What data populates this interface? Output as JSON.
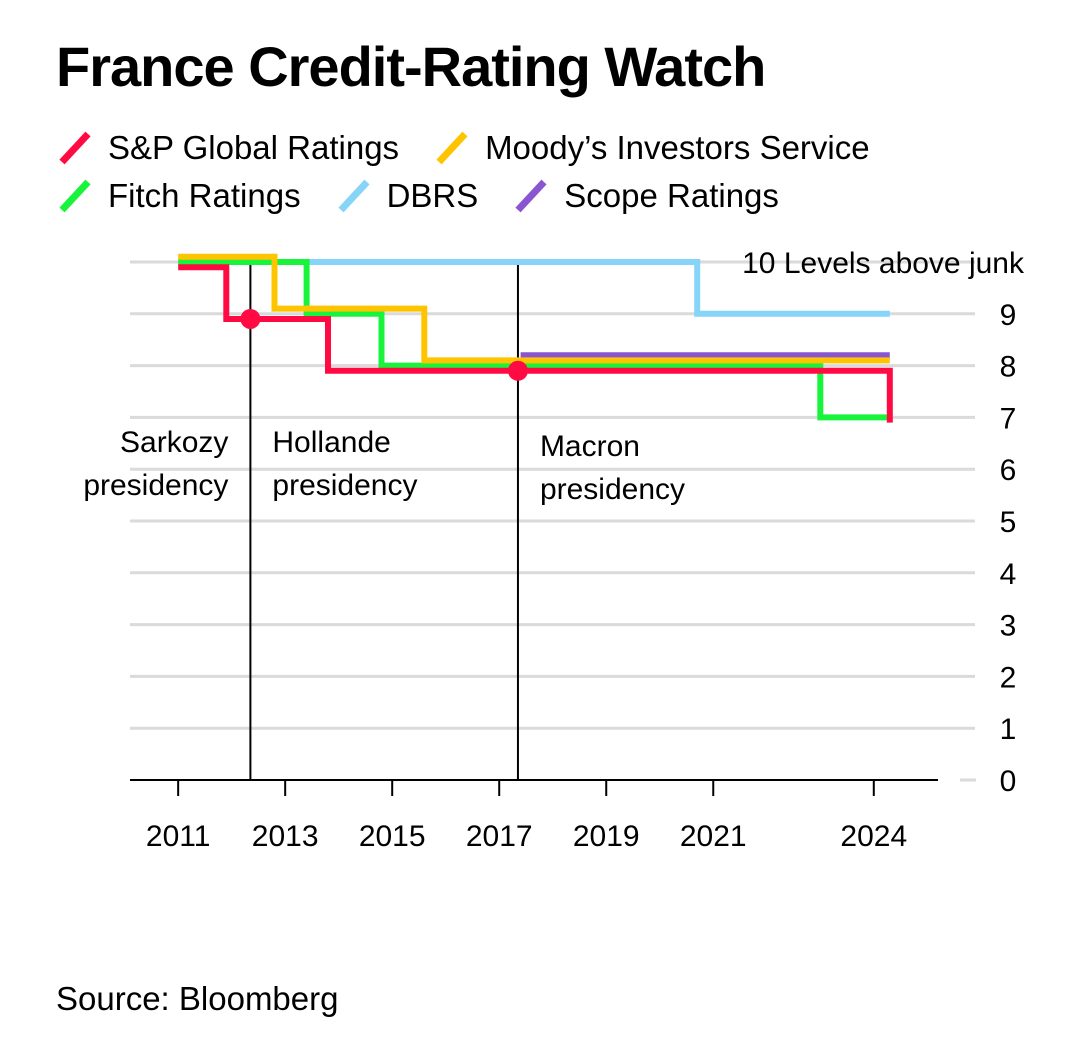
{
  "title": "France Credit-Rating Watch",
  "source": "Source: Bloomberg",
  "chart_data": {
    "type": "line",
    "title": "France Credit-Rating Watch",
    "xlabel": "",
    "ylabel": "Levels above junk",
    "xlim": [
      2010.1,
      2025.2
    ],
    "ylim": [
      0,
      10
    ],
    "x_ticks": [
      2011,
      2013,
      2015,
      2017,
      2019,
      2021,
      2024
    ],
    "y_ticks": [
      0,
      1,
      2,
      3,
      4,
      5,
      6,
      7,
      8,
      9,
      10
    ],
    "top_tick_label": "10 Levels above junk",
    "grid": true,
    "series": [
      {
        "name": "DBRS",
        "color": "#86d4f8",
        "points": [
          [
            2011.0,
            10
          ],
          [
            2020.7,
            10
          ],
          [
            2020.7,
            9
          ],
          [
            2024.3,
            9
          ]
        ]
      },
      {
        "name": "Scope Ratings",
        "color": "#8a55d0",
        "points": [
          [
            2017.4,
            8.2
          ],
          [
            2024.3,
            8.2
          ]
        ]
      },
      {
        "name": "Fitch Ratings",
        "color": "#18f43c",
        "points": [
          [
            2011.0,
            10
          ],
          [
            2013.4,
            10
          ],
          [
            2013.4,
            9
          ],
          [
            2014.8,
            9
          ],
          [
            2014.8,
            8
          ],
          [
            2023.0,
            8
          ],
          [
            2023.0,
            7
          ],
          [
            2024.3,
            7
          ]
        ]
      },
      {
        "name": "Moody's Investors Service",
        "color": "#ffc400",
        "points": [
          [
            2011.0,
            10.1
          ],
          [
            2012.8,
            10.1
          ],
          [
            2012.8,
            9.1
          ],
          [
            2015.6,
            9.1
          ],
          [
            2015.6,
            8.1
          ],
          [
            2024.3,
            8.1
          ]
        ]
      },
      {
        "name": "S&P Global Ratings",
        "color": "#ff0a42",
        "points": [
          [
            2011.0,
            9.9
          ],
          [
            2011.9,
            9.9
          ],
          [
            2011.9,
            8.9
          ],
          [
            2013.8,
            8.9
          ],
          [
            2013.8,
            7.9
          ],
          [
            2024.3,
            7.9
          ],
          [
            2024.3,
            6.9
          ]
        ]
      }
    ],
    "markers": [
      {
        "series": "S&P Global Ratings",
        "x": 2012.35,
        "y": 8.9
      },
      {
        "series": "S&P Global Ratings",
        "x": 2017.35,
        "y": 7.9
      }
    ],
    "events": [
      {
        "x": 2012.35,
        "label_before": [
          "Sarkozy",
          "presidency"
        ],
        "label_after": [
          "Hollande",
          "presidency"
        ]
      },
      {
        "x": 2017.35,
        "label_after": [
          "Macron",
          "presidency"
        ]
      }
    ]
  },
  "legend": [
    [
      {
        "name": "S&P Global Ratings",
        "color": "#ff0a42"
      },
      {
        "name": "Moody’s Investors Service",
        "color": "#ffc400"
      }
    ],
    [
      {
        "name": "Fitch Ratings",
        "color": "#18f43c"
      },
      {
        "name": "DBRS",
        "color": "#86d4f8"
      },
      {
        "name": "Scope Ratings",
        "color": "#8a55d0"
      }
    ]
  ]
}
